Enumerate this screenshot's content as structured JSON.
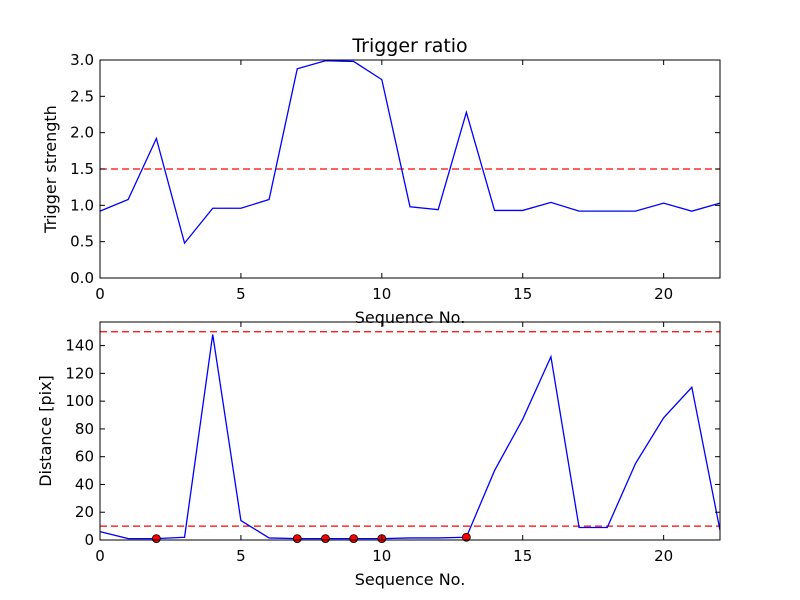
{
  "chart_data": [
    {
      "type": "line",
      "title": "Trigger ratio",
      "xlabel": "Sequence No.",
      "ylabel": "Trigger strength",
      "xlim": [
        0,
        22
      ],
      "ylim": [
        0,
        3.0
      ],
      "x_ticks": [
        0,
        5,
        10,
        15,
        20
      ],
      "x_tick_labels": [
        "0",
        "5",
        "10",
        "15",
        "20"
      ],
      "y_ticks": [
        0,
        0.5,
        1.0,
        1.5,
        2.0,
        2.5,
        3.0
      ],
      "y_tick_labels": [
        "0.0",
        "0.5",
        "1.0",
        "1.5",
        "2.0",
        "2.5",
        "3.0"
      ],
      "grid": false,
      "series": [
        {
          "color": "#0000ff",
          "style": "solid",
          "x": [
            0,
            1,
            2,
            3,
            4,
            5,
            6,
            7,
            8,
            9,
            10,
            11,
            12,
            13,
            14,
            15,
            16,
            17,
            18,
            19,
            20,
            21,
            22
          ],
          "y": [
            0.92,
            1.08,
            1.92,
            0.48,
            0.96,
            0.96,
            1.08,
            2.88,
            2.99,
            2.98,
            2.73,
            0.98,
            0.94,
            2.28,
            0.93,
            0.93,
            1.04,
            0.92,
            0.92,
            0.92,
            1.03,
            0.92,
            1.03
          ]
        }
      ],
      "hlines": [
        {
          "y": 1.5,
          "color": "#ff0000",
          "style": "dashed"
        }
      ]
    },
    {
      "type": "line",
      "title": "",
      "xlabel": "Sequence No.",
      "ylabel": "Distance [pix]",
      "xlim": [
        0,
        22
      ],
      "ylim": [
        0,
        157
      ],
      "x_ticks": [
        0,
        5,
        10,
        15,
        20
      ],
      "x_tick_labels": [
        "0",
        "5",
        "10",
        "15",
        "20"
      ],
      "y_ticks": [
        0,
        20,
        40,
        60,
        80,
        100,
        120,
        140
      ],
      "y_tick_labels": [
        "0",
        "20",
        "40",
        "60",
        "80",
        "100",
        "120",
        "140"
      ],
      "grid": false,
      "series": [
        {
          "color": "#0000ff",
          "style": "solid",
          "x": [
            0,
            1,
            2,
            3,
            4,
            5,
            6,
            7,
            8,
            9,
            10,
            11,
            12,
            13,
            14,
            15,
            16,
            17,
            18,
            19,
            20,
            21,
            22
          ],
          "y": [
            6,
            1,
            1,
            2,
            148,
            14,
            1.5,
            1,
            1,
            1,
            1,
            1.5,
            1.5,
            2,
            50,
            87,
            132,
            9,
            9,
            55,
            88,
            110,
            7
          ]
        }
      ],
      "markers": {
        "color": "#ff0000",
        "x": [
          2,
          7,
          8,
          9,
          10,
          13
        ],
        "y": [
          1,
          1,
          1,
          1,
          1,
          2
        ]
      },
      "hlines": [
        {
          "y": 150,
          "color": "#ff0000",
          "style": "dashed"
        },
        {
          "y": 10,
          "color": "#ff0000",
          "style": "dashed"
        }
      ]
    }
  ]
}
